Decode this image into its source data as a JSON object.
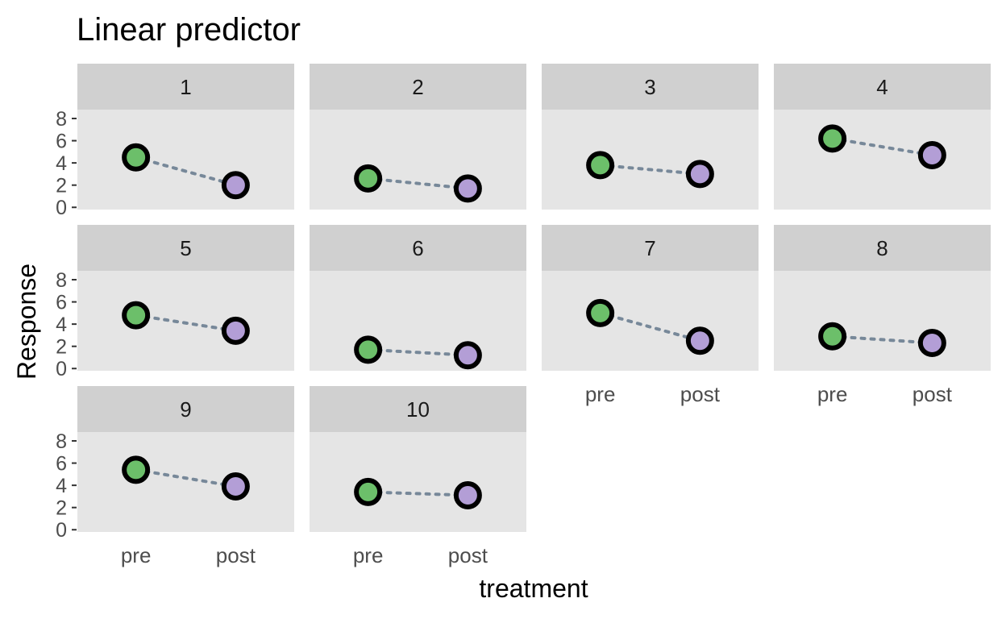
{
  "chart_data": {
    "type": "scatter",
    "title": "Linear predictor",
    "xlabel": "treatment",
    "ylabel": "Response",
    "categories": [
      "pre",
      "post"
    ],
    "y_ticks": [
      "0",
      "2",
      "4",
      "6",
      "8"
    ],
    "ylim": [
      -0.2,
      8.8
    ],
    "grid": false,
    "legend": "none",
    "colors": {
      "pre": "#6cbf6a",
      "post": "#b39ed6",
      "point_outline": "#000000",
      "connector": "#778899",
      "panel_bg": "#e5e5e5",
      "strip_bg": "#d0d0d0"
    },
    "panels": [
      {
        "label": "1",
        "values": [
          4.5,
          2.0
        ]
      },
      {
        "label": "2",
        "values": [
          2.6,
          1.7
        ]
      },
      {
        "label": "3",
        "values": [
          3.8,
          3.0
        ]
      },
      {
        "label": "4",
        "values": [
          6.2,
          4.7
        ]
      },
      {
        "label": "5",
        "values": [
          4.8,
          3.4
        ]
      },
      {
        "label": "6",
        "values": [
          1.7,
          1.2
        ]
      },
      {
        "label": "7",
        "values": [
          5.0,
          2.5
        ]
      },
      {
        "label": "8",
        "values": [
          2.9,
          2.3
        ]
      },
      {
        "label": "9",
        "values": [
          5.4,
          3.9
        ]
      },
      {
        "label": "10",
        "values": [
          3.4,
          3.1
        ]
      }
    ]
  }
}
